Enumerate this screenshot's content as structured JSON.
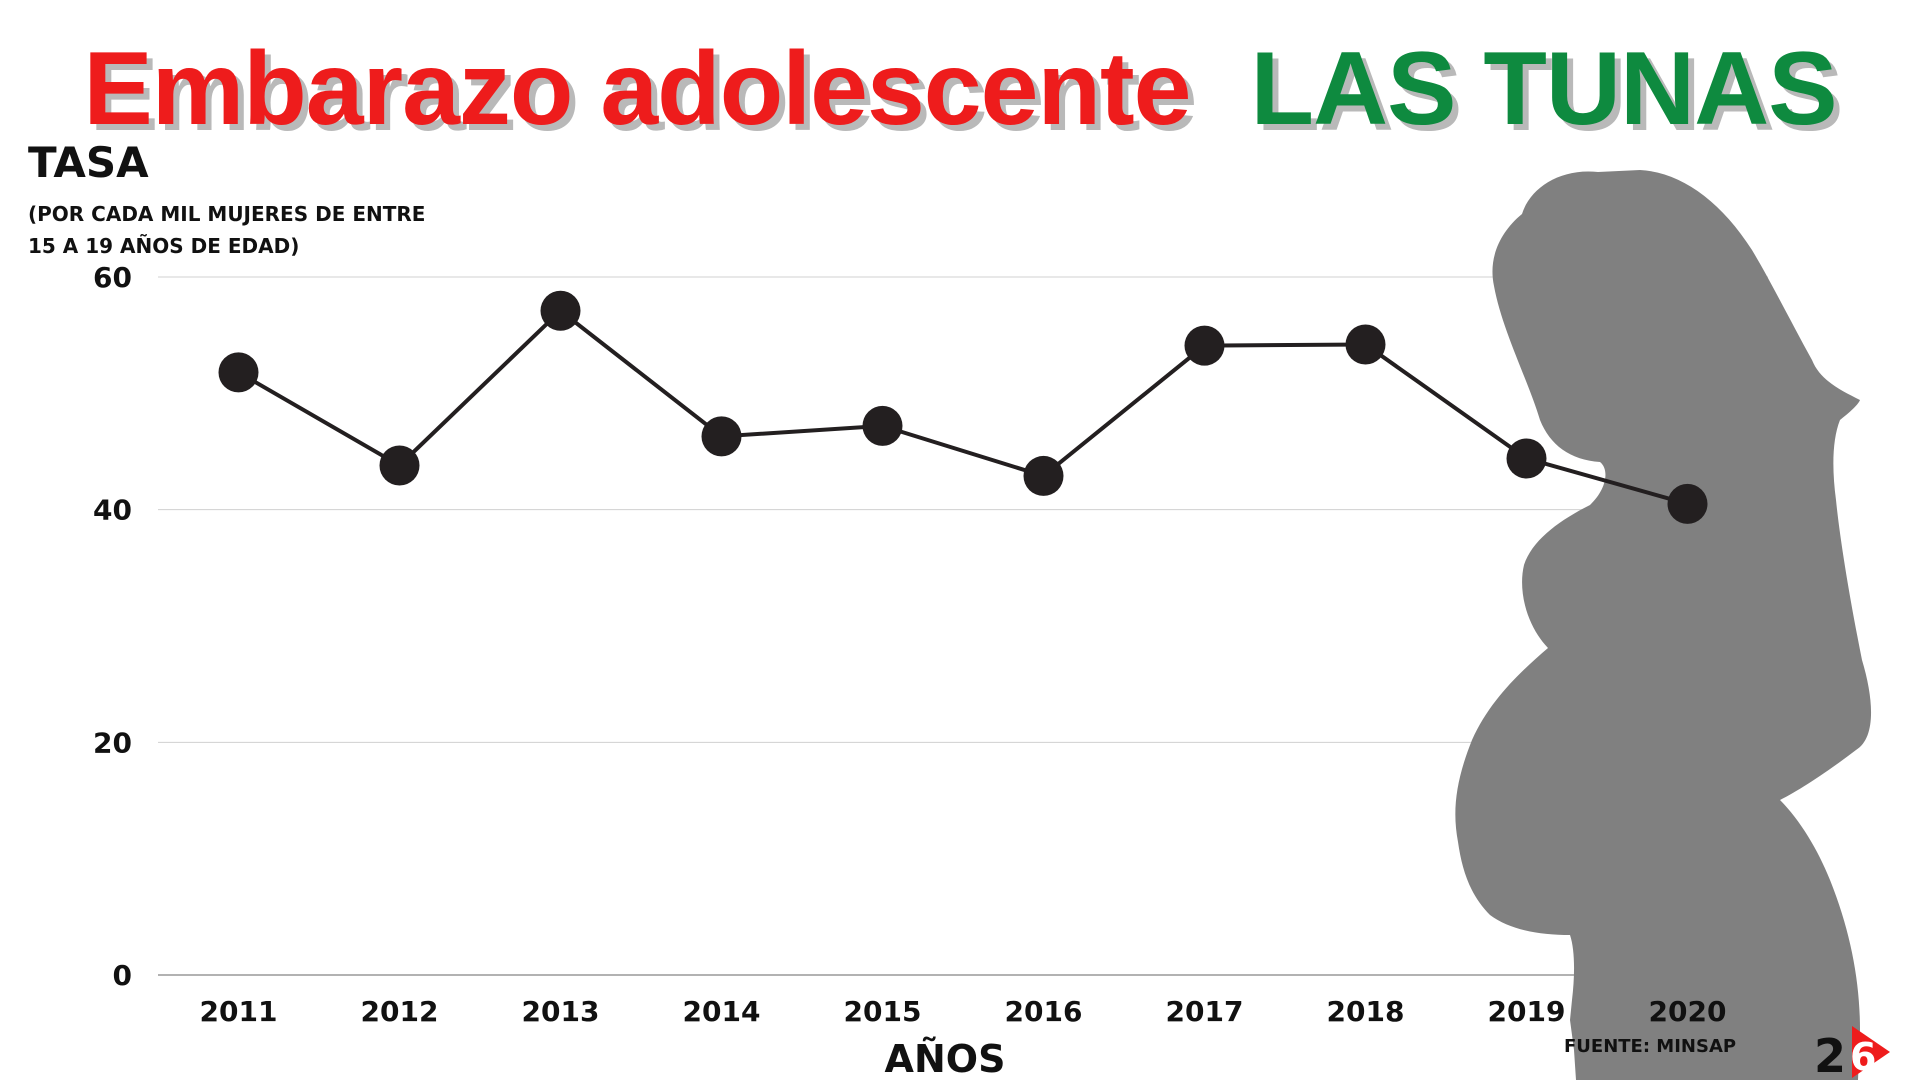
{
  "header": {
    "title_part1": "Embarazo adolescente",
    "title_part2": "LAS TUNAS"
  },
  "chart_data": {
    "type": "line",
    "ytitle": "TASA",
    "ysubtitle": "(POR CADA MIL MUJERES DE ENTRE 15 A 19 AÑOS DE EDAD)",
    "xlabel": "AÑOS",
    "categories": [
      "2011",
      "2012",
      "2013",
      "2014",
      "2015",
      "2016",
      "2017",
      "2018",
      "2019",
      "2020"
    ],
    "series": [
      {
        "values": [
          51.8,
          43.8,
          57.1,
          46.3,
          47.2,
          42.9,
          54.1,
          54.2,
          44.4,
          40.5
        ]
      }
    ],
    "ylim": [
      0,
      60
    ],
    "yticks": [
      0,
      20,
      40,
      60
    ],
    "grid": true,
    "line_color": "#231f20",
    "silhouette_color": "#808080"
  },
  "footer": {
    "source": "FUENTE: MINSAP",
    "logo_text": "26"
  }
}
